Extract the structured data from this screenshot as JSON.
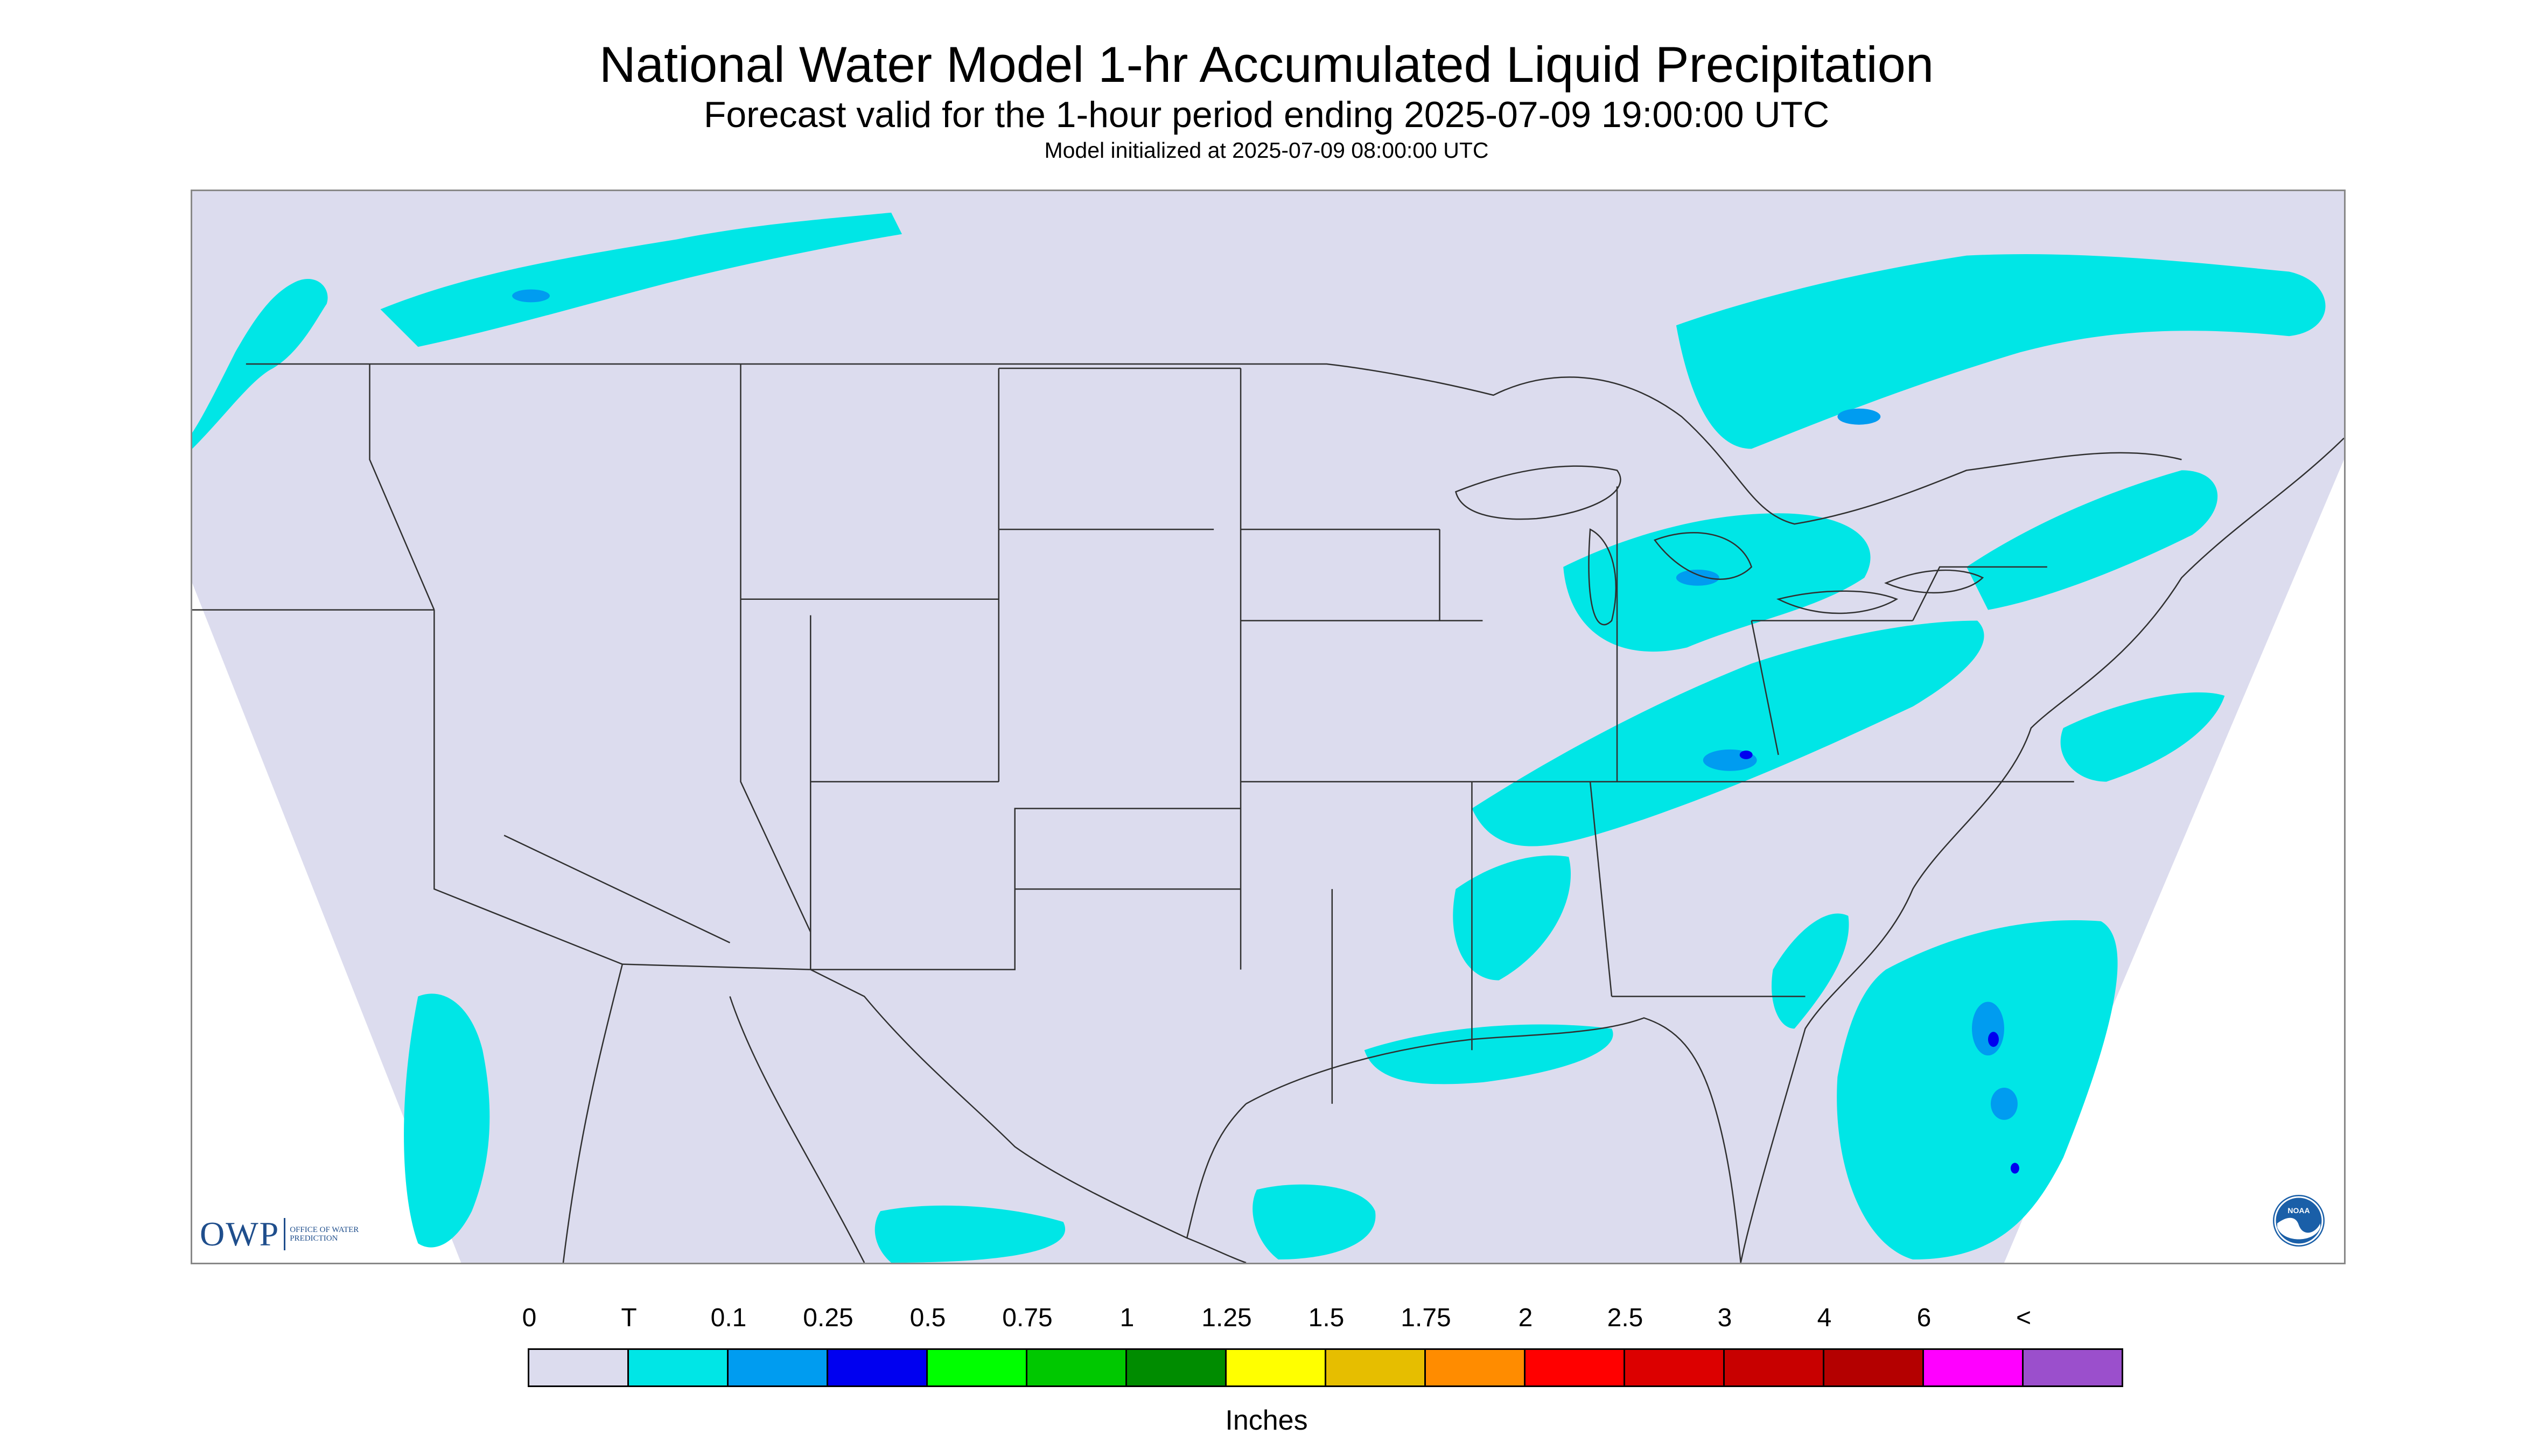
{
  "header": {
    "title": "National Water Model 1-hr Accumulated Liquid Precipitation",
    "subtitle": "Forecast valid for the 1-hour period ending 2025-07-09 19:00:00 UTC",
    "init_line": "Model initialized at 2025-07-09 08:00:00 UTC"
  },
  "map": {
    "domain_fill_color": "#dcdcee",
    "outside_color": "#ffffff",
    "boundary_color": "#303030",
    "precip_light_color": "#00e6e6",
    "precip_mid_color": "#009cf0",
    "precip_heavy_color": "#0000f0",
    "owp_logo": {
      "mark": "OWP",
      "text": "OFFICE OF WATER PREDICTION"
    },
    "noaa_logo": {
      "text": "NOAA",
      "icon": "noaa-seal-icon"
    }
  },
  "legend": {
    "labels": [
      "0",
      "T",
      "0.1",
      "0.25",
      "0.5",
      "0.75",
      "1",
      "1.25",
      "1.5",
      "1.75",
      "2",
      "2.5",
      "3",
      "4",
      "6",
      "<"
    ],
    "colors": [
      "#dcdcee",
      "#00e6e6",
      "#009cf0",
      "#0000f0",
      "#00ff00",
      "#00c800",
      "#008c00",
      "#ffff00",
      "#e6be00",
      "#ff8c00",
      "#ff0000",
      "#dc0000",
      "#c80000",
      "#b40000",
      "#ff00ff",
      "#9b4fcc"
    ],
    "units": "Inches"
  }
}
